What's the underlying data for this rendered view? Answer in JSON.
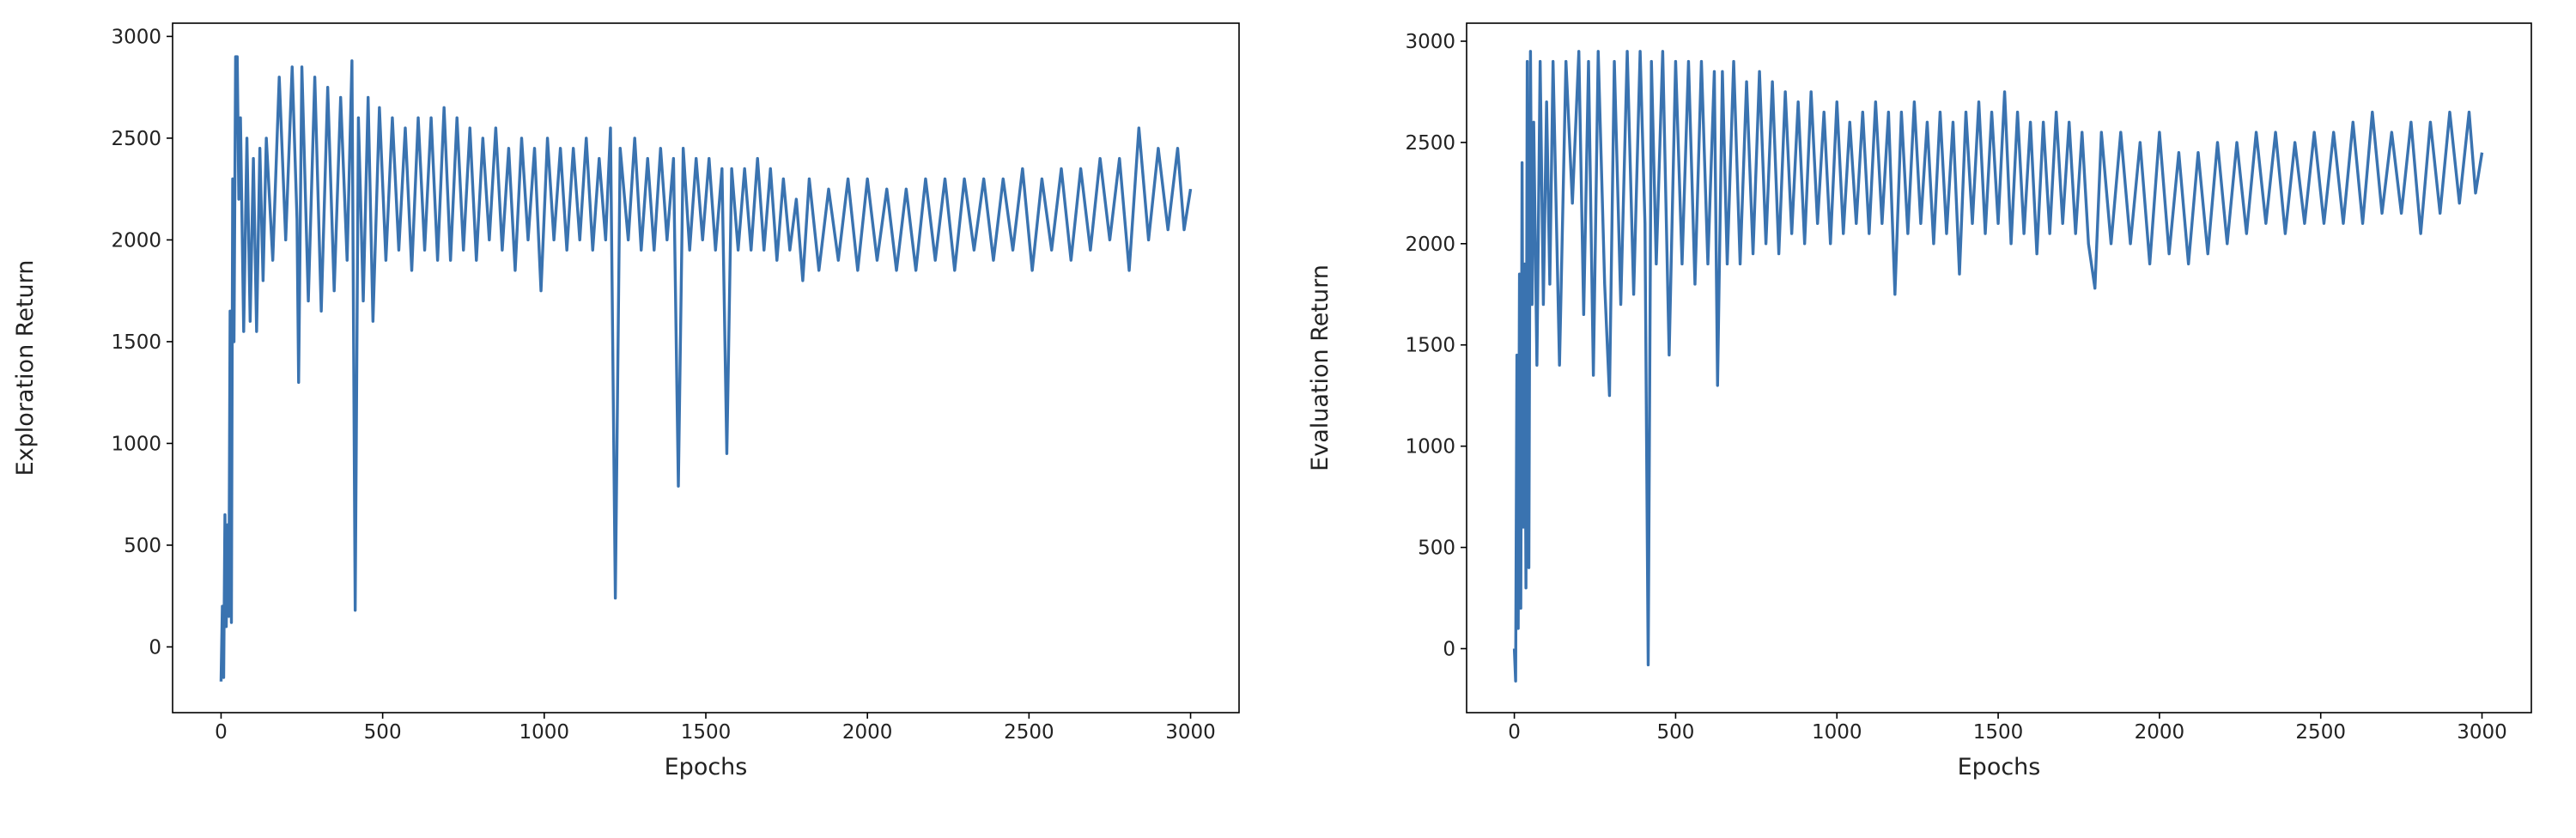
{
  "chart_data": [
    {
      "type": "line",
      "xlabel": "Epochs",
      "ylabel": "Exploration Return",
      "color": "#3a73b0",
      "xlim": [
        -150,
        3150
      ],
      "ylim": [
        -323,
        3065
      ],
      "xticks": [
        0,
        500,
        1000,
        1500,
        2000,
        2500,
        3000
      ],
      "yticks": [
        0,
        500,
        1000,
        1500,
        2000,
        2500,
        3000
      ],
      "x": [
        0,
        4,
        8,
        12,
        16,
        20,
        24,
        28,
        32,
        36,
        40,
        45,
        50,
        55,
        60,
        70,
        80,
        90,
        100,
        110,
        120,
        130,
        140,
        160,
        180,
        200,
        220,
        235,
        240,
        250,
        270,
        290,
        310,
        330,
        350,
        370,
        390,
        405,
        415,
        425,
        440,
        455,
        470,
        490,
        510,
        530,
        550,
        570,
        590,
        610,
        630,
        650,
        670,
        690,
        710,
        730,
        750,
        770,
        790,
        810,
        830,
        850,
        870,
        890,
        910,
        930,
        950,
        970,
        990,
        1010,
        1030,
        1050,
        1070,
        1090,
        1110,
        1130,
        1150,
        1170,
        1190,
        1205,
        1220,
        1235,
        1260,
        1280,
        1300,
        1320,
        1340,
        1360,
        1380,
        1400,
        1415,
        1430,
        1450,
        1470,
        1490,
        1510,
        1530,
        1550,
        1565,
        1580,
        1600,
        1620,
        1640,
        1660,
        1680,
        1700,
        1720,
        1740,
        1760,
        1780,
        1800,
        1820,
        1850,
        1880,
        1910,
        1940,
        1970,
        2000,
        2030,
        2060,
        2090,
        2120,
        2150,
        2180,
        2210,
        2240,
        2270,
        2300,
        2330,
        2360,
        2390,
        2420,
        2450,
        2480,
        2510,
        2540,
        2570,
        2600,
        2630,
        2660,
        2690,
        2720,
        2750,
        2780,
        2810,
        2840,
        2870,
        2900,
        2930,
        2960,
        2980,
        3000
      ],
      "values": [
        -170,
        200,
        -150,
        650,
        100,
        600,
        150,
        1650,
        120,
        2300,
        1500,
        2900,
        2900,
        2200,
        2600,
        1550,
        2500,
        1600,
        2400,
        1550,
        2450,
        1800,
        2500,
        1900,
        2800,
        2000,
        2850,
        2100,
        1300,
        2850,
        1700,
        2800,
        1650,
        2750,
        1750,
        2700,
        1900,
        2880,
        180,
        2600,
        1700,
        2700,
        1600,
        2650,
        1900,
        2600,
        1950,
        2550,
        1850,
        2600,
        1950,
        2600,
        1900,
        2650,
        1900,
        2600,
        1950,
        2550,
        1900,
        2500,
        2000,
        2550,
        1950,
        2450,
        1850,
        2500,
        2000,
        2450,
        1750,
        2500,
        2000,
        2450,
        1950,
        2450,
        2000,
        2500,
        1950,
        2400,
        2000,
        2550,
        240,
        2450,
        2000,
        2500,
        1950,
        2400,
        1950,
        2450,
        2000,
        2400,
        790,
        2450,
        1950,
        2400,
        2000,
        2400,
        1950,
        2350,
        950,
        2350,
        1950,
        2350,
        1950,
        2400,
        1950,
        2350,
        1900,
        2300,
        1950,
        2200,
        1800,
        2300,
        1850,
        2250,
        1900,
        2300,
        1850,
        2300,
        1900,
        2250,
        1850,
        2250,
        1850,
        2300,
        1900,
        2300,
        1850,
        2300,
        1950,
        2300,
        1900,
        2300,
        1950,
        2350,
        1850,
        2300,
        1950,
        2350,
        1900,
        2350,
        1950,
        2400,
        2000,
        2400,
        1850,
        2550,
        2000,
        2450,
        2050,
        2450,
        2050,
        2250
      ]
    },
    {
      "type": "line",
      "xlabel": "Epochs",
      "ylabel": "Evaluation Return",
      "color": "#3a73b0",
      "xlim": [
        -148,
        3153
      ],
      "ylim": [
        -316,
        3089
      ],
      "xticks": [
        0,
        500,
        1000,
        1500,
        2000,
        2500,
        3000
      ],
      "yticks": [
        0,
        500,
        1000,
        1500,
        2000,
        2500,
        3000
      ],
      "x": [
        0,
        4,
        8,
        12,
        16,
        20,
        24,
        28,
        32,
        36,
        40,
        45,
        50,
        55,
        60,
        70,
        80,
        90,
        100,
        110,
        120,
        140,
        160,
        180,
        200,
        215,
        230,
        245,
        260,
        280,
        295,
        310,
        330,
        350,
        370,
        390,
        405,
        415,
        425,
        440,
        460,
        480,
        500,
        520,
        540,
        560,
        580,
        600,
        620,
        630,
        645,
        660,
        680,
        700,
        720,
        740,
        760,
        780,
        800,
        820,
        840,
        860,
        880,
        900,
        920,
        940,
        960,
        980,
        1000,
        1020,
        1040,
        1060,
        1080,
        1100,
        1120,
        1140,
        1160,
        1180,
        1200,
        1220,
        1240,
        1260,
        1280,
        1300,
        1320,
        1340,
        1360,
        1380,
        1400,
        1420,
        1440,
        1460,
        1480,
        1500,
        1520,
        1540,
        1560,
        1580,
        1600,
        1620,
        1640,
        1660,
        1680,
        1700,
        1720,
        1740,
        1760,
        1780,
        1800,
        1820,
        1850,
        1880,
        1910,
        1940,
        1970,
        2000,
        2030,
        2060,
        2090,
        2120,
        2150,
        2180,
        2210,
        2240,
        2270,
        2300,
        2330,
        2360,
        2390,
        2420,
        2450,
        2480,
        2510,
        2540,
        2570,
        2600,
        2630,
        2660,
        2690,
        2720,
        2750,
        2780,
        2810,
        2840,
        2870,
        2900,
        2930,
        2960,
        2980,
        3000
      ],
      "values": [
        0,
        -160,
        1450,
        100,
        1850,
        200,
        2400,
        600,
        1900,
        300,
        2900,
        400,
        2950,
        1700,
        2600,
        1400,
        2900,
        1700,
        2700,
        1800,
        2900,
        1400,
        2900,
        2200,
        2950,
        1650,
        2900,
        1350,
        2950,
        1800,
        1250,
        2900,
        1700,
        2950,
        1750,
        2950,
        2100,
        -80,
        2900,
        1900,
        2950,
        1450,
        2900,
        1900,
        2900,
        1800,
        2900,
        1900,
        2850,
        1300,
        2850,
        1900,
        2900,
        1900,
        2800,
        1950,
        2850,
        2000,
        2800,
        1950,
        2750,
        2050,
        2700,
        2000,
        2750,
        2100,
        2650,
        2000,
        2700,
        2050,
        2600,
        2100,
        2650,
        2050,
        2700,
        2100,
        2650,
        1750,
        2650,
        2050,
        2700,
        2100,
        2600,
        2000,
        2650,
        2050,
        2600,
        1850,
        2650,
        2100,
        2700,
        2050,
        2650,
        2100,
        2750,
        2000,
        2650,
        2050,
        2600,
        1950,
        2600,
        2050,
        2650,
        2100,
        2600,
        2050,
        2550,
        2000,
        1780,
        2550,
        2000,
        2550,
        2000,
        2500,
        1900,
        2550,
        1950,
        2450,
        1900,
        2450,
        1950,
        2500,
        2000,
        2500,
        2050,
        2550,
        2100,
        2550,
        2050,
        2500,
        2100,
        2550,
        2100,
        2550,
        2100,
        2600,
        2100,
        2650,
        2150,
        2550,
        2150,
        2600,
        2050,
        2600,
        2150,
        2650,
        2200,
        2650,
        2250,
        2450
      ]
    }
  ]
}
